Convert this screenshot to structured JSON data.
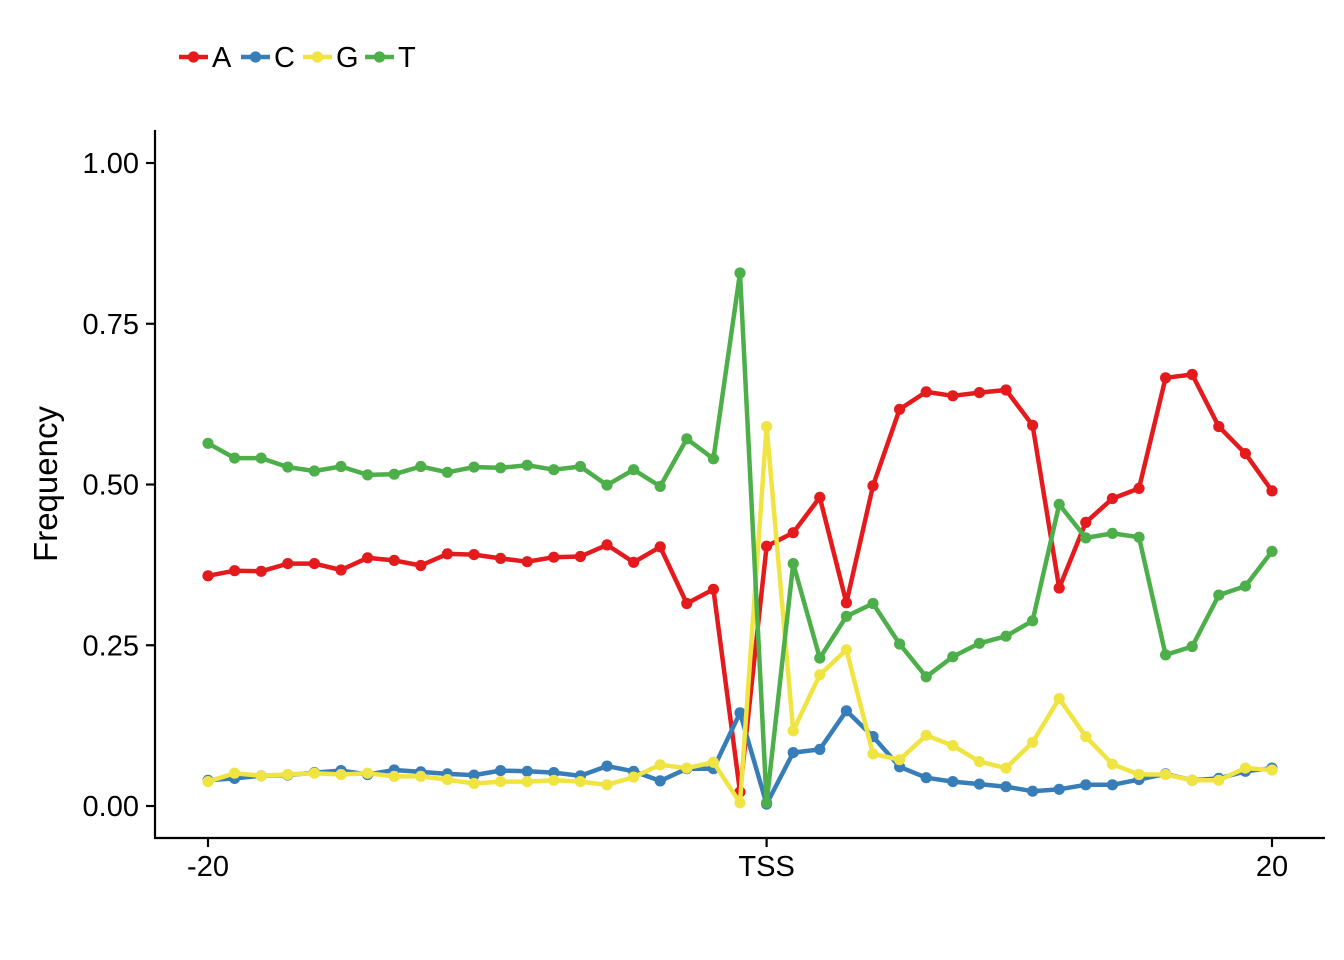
{
  "chart_data": {
    "type": "line",
    "xlabel": "",
    "ylabel": "Frequency",
    "xlim": [
      -20,
      20
    ],
    "ylim": [
      0,
      1
    ],
    "x_ticks": [
      {
        "value": -20,
        "label": "-20"
      },
      {
        "value": 1,
        "label": "TSS"
      },
      {
        "value": 20,
        "label": "20"
      }
    ],
    "y_ticks": [
      {
        "value": 0,
        "label": "0.00"
      },
      {
        "value": 0.25,
        "label": "0.25"
      },
      {
        "value": 0.5,
        "label": "0.50"
      },
      {
        "value": 0.75,
        "label": "0.75"
      },
      {
        "value": 1,
        "label": "1.00"
      }
    ],
    "grid": false,
    "legend_position": "top-left",
    "x": [
      -20,
      -19,
      -18,
      -17,
      -16,
      -15,
      -14,
      -13,
      -12,
      -11,
      -10,
      -9,
      -8,
      -7,
      -6,
      -5,
      -4,
      -3,
      -2,
      -1,
      0,
      1,
      2,
      3,
      4,
      5,
      6,
      7,
      8,
      9,
      10,
      11,
      12,
      13,
      14,
      15,
      16,
      17,
      18,
      19,
      20
    ],
    "series": [
      {
        "name": "A",
        "color": "#e41a1c",
        "values": [
          0.358,
          0.366,
          0.365,
          0.377,
          0.377,
          0.367,
          0.386,
          0.382,
          0.374,
          0.392,
          0.391,
          0.385,
          0.38,
          0.387,
          0.388,
          0.406,
          0.379,
          0.403,
          0.315,
          0.337,
          0.022,
          0.404,
          0.425,
          0.48,
          0.316,
          0.498,
          0.617,
          0.644,
          0.638,
          0.643,
          0.647,
          0.592,
          0.339,
          0.441,
          0.478,
          0.494,
          0.666,
          0.671,
          0.59,
          0.548,
          0.49
        ]
      },
      {
        "name": "C",
        "color": "#377eb8",
        "values": [
          0.04,
          0.043,
          0.047,
          0.048,
          0.052,
          0.055,
          0.049,
          0.056,
          0.053,
          0.05,
          0.048,
          0.055,
          0.054,
          0.052,
          0.047,
          0.062,
          0.054,
          0.039,
          0.058,
          0.058,
          0.145,
          0.003,
          0.083,
          0.088,
          0.148,
          0.108,
          0.061,
          0.044,
          0.038,
          0.034,
          0.03,
          0.023,
          0.026,
          0.033,
          0.033,
          0.041,
          0.05,
          0.04,
          0.043,
          0.054,
          0.059
        ]
      },
      {
        "name": "G",
        "color": "#f0e442",
        "values": [
          0.038,
          0.051,
          0.047,
          0.049,
          0.051,
          0.049,
          0.051,
          0.046,
          0.046,
          0.041,
          0.035,
          0.038,
          0.038,
          0.04,
          0.038,
          0.033,
          0.045,
          0.064,
          0.059,
          0.068,
          0.005,
          0.59,
          0.117,
          0.204,
          0.243,
          0.081,
          0.072,
          0.11,
          0.094,
          0.069,
          0.059,
          0.099,
          0.167,
          0.108,
          0.065,
          0.049,
          0.049,
          0.04,
          0.04,
          0.059,
          0.056
        ]
      },
      {
        "name": "T",
        "color": "#4daf4a",
        "values": [
          0.564,
          0.541,
          0.541,
          0.527,
          0.521,
          0.528,
          0.515,
          0.516,
          0.528,
          0.519,
          0.527,
          0.526,
          0.53,
          0.523,
          0.528,
          0.499,
          0.523,
          0.497,
          0.571,
          0.54,
          0.829,
          0.005,
          0.377,
          0.23,
          0.295,
          0.315,
          0.252,
          0.201,
          0.232,
          0.253,
          0.264,
          0.288,
          0.469,
          0.417,
          0.424,
          0.418,
          0.235,
          0.248,
          0.328,
          0.342,
          0.396
        ]
      }
    ]
  }
}
